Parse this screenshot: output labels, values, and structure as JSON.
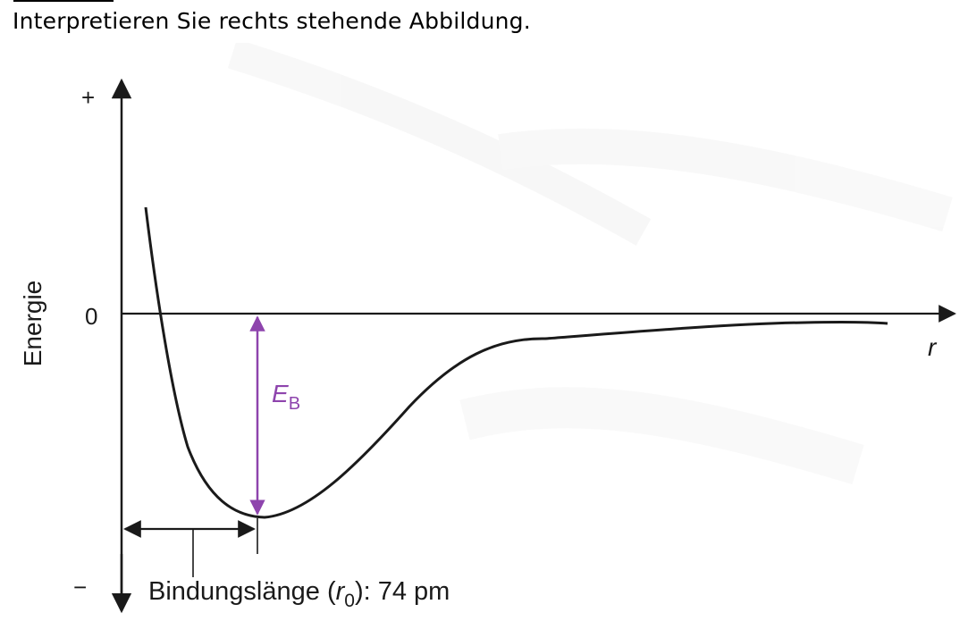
{
  "header": {
    "instruction": "Interpretieren Sie rechts stehende Abbildung."
  },
  "diagram": {
    "axis_labels": {
      "y_axis": "Energie",
      "x_axis": "r",
      "y_plus": "+",
      "y_minus": "−",
      "y_zero": "0"
    },
    "binding_energy": {
      "symbol": "E",
      "subscript": "B",
      "color": "#8e44ad"
    },
    "bond_length": {
      "label_prefix": "Bindungslänge (",
      "symbol": "r",
      "subscript": "0",
      "label_suffix": "): 74 pm"
    },
    "colors": {
      "curve": "#1a1a1a",
      "axes": "#1a1a1a",
      "arrow_eb": "#8e44ad"
    }
  }
}
